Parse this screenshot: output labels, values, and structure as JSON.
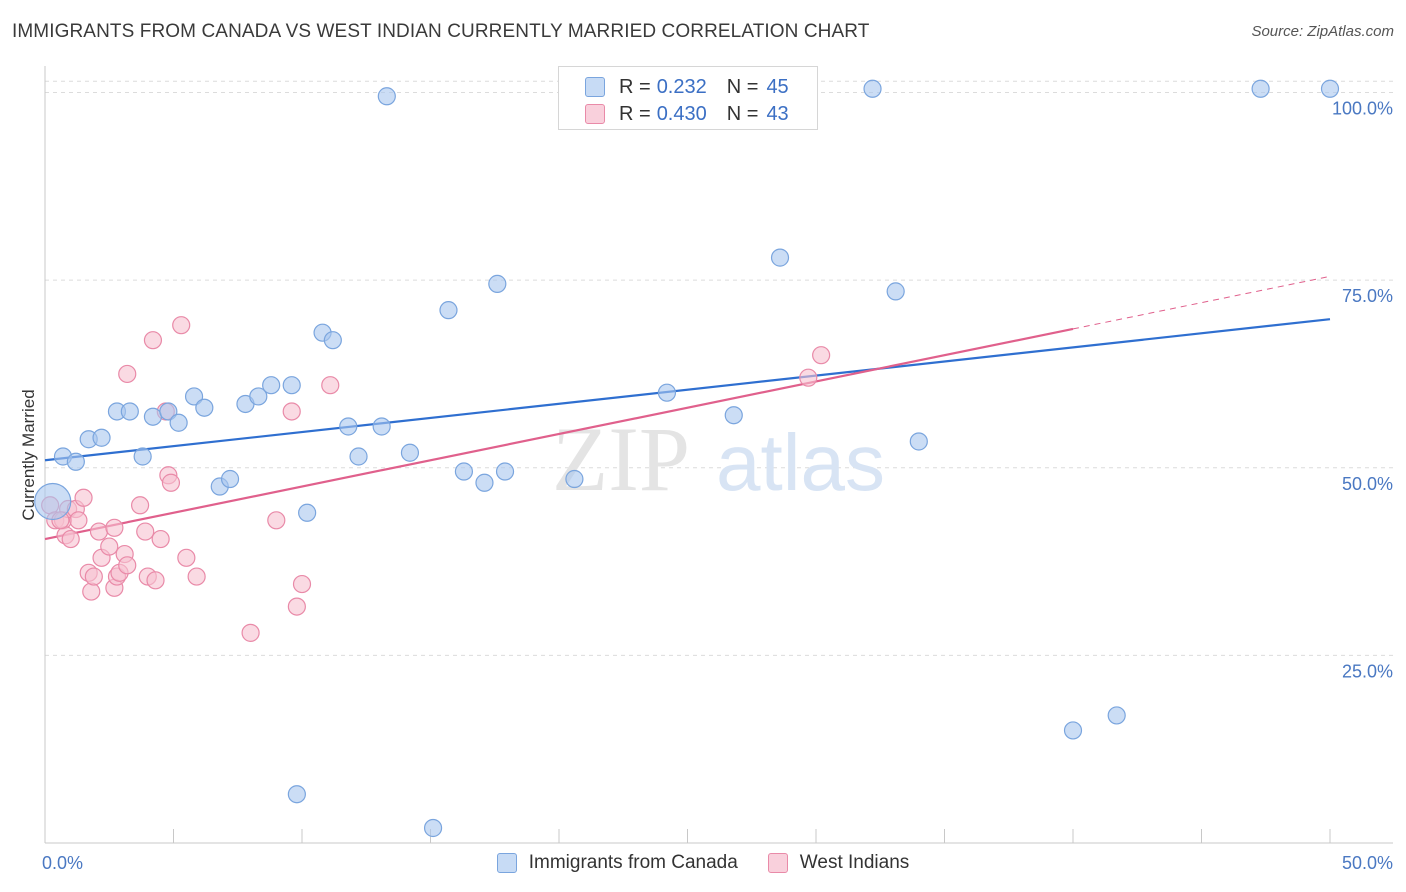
{
  "header": {
    "title": "IMMIGRANTS FROM CANADA VS WEST INDIAN CURRENTLY MARRIED CORRELATION CHART",
    "source": "Source: ZipAtlas.com"
  },
  "watermark": {
    "zip": "ZIP",
    "atlas": "atlas"
  },
  "legend": {
    "rows": [
      {
        "r_label": "R =",
        "r_value": "0.232",
        "n_label": "N =",
        "n_value": "45",
        "color": "#a9c7ef"
      },
      {
        "r_label": "R =",
        "r_value": "0.430",
        "n_label": "N =",
        "n_value": "43",
        "color": "#f4b8ca"
      }
    ]
  },
  "bottom_legend": [
    {
      "label": "Immigrants from Canada",
      "color": "#a9c7ef"
    },
    {
      "label": "West Indians",
      "color": "#f4b8ca"
    }
  ],
  "colors": {
    "blue_fill": "#a9c7ef",
    "blue_stroke": "#7aa5de",
    "blue_line": "#2f6fd0",
    "pink_fill": "#f6c1d1",
    "pink_stroke": "#e98aa8",
    "pink_line": "#e0608c",
    "tick_text": "#4a78c2",
    "grid": "#dcdcdc"
  },
  "chart_data": {
    "type": "scatter",
    "title": "IMMIGRANTS FROM CANADA VS WEST INDIAN CURRENTLY MARRIED CORRELATION CHART",
    "xlabel": "",
    "ylabel": "Currently Married",
    "xlim": [
      0,
      50
    ],
    "ylim": [
      0,
      103
    ],
    "x_tick_labels": [
      "0.0%",
      "50.0%"
    ],
    "y_tick_labels": [
      "25.0%",
      "50.0%",
      "75.0%",
      "100.0%"
    ],
    "y_ticks": [
      25,
      50,
      75,
      100
    ],
    "grid": "horizontal dashed",
    "legend_position": "top-center",
    "series": [
      {
        "name": "Immigrants from Canada",
        "points": [
          [
            0.3,
            45.5
          ],
          [
            0.7,
            51.5
          ],
          [
            1.2,
            50.8
          ],
          [
            1.7,
            53.8
          ],
          [
            2.2,
            54
          ],
          [
            2.8,
            57.5
          ],
          [
            3.3,
            57.5
          ],
          [
            3.8,
            51.5
          ],
          [
            4.2,
            56.8
          ],
          [
            4.8,
            57.5
          ],
          [
            5.2,
            56
          ],
          [
            5.8,
            59.5
          ],
          [
            6.2,
            58
          ],
          [
            6.8,
            47.5
          ],
          [
            7.2,
            48.5
          ],
          [
            7.8,
            58.5
          ],
          [
            8.3,
            59.5
          ],
          [
            8.8,
            61
          ],
          [
            9.6,
            61
          ],
          [
            9.8,
            6.5
          ],
          [
            10.2,
            44
          ],
          [
            10.8,
            68
          ],
          [
            11.2,
            67
          ],
          [
            11.8,
            55.5
          ],
          [
            12.2,
            51.5
          ],
          [
            13.1,
            55.5
          ],
          [
            13.3,
            99.5
          ],
          [
            14.2,
            52
          ],
          [
            15.1,
            2
          ],
          [
            15.7,
            71
          ],
          [
            16.3,
            49.5
          ],
          [
            17.1,
            48
          ],
          [
            17.6,
            74.5
          ],
          [
            17.9,
            49.5
          ],
          [
            20.6,
            48.5
          ],
          [
            24.2,
            60
          ],
          [
            26.8,
            57
          ],
          [
            28.6,
            78
          ],
          [
            32.2,
            100.5
          ],
          [
            33.1,
            73.5
          ],
          [
            34.0,
            53.5
          ],
          [
            40.0,
            15
          ],
          [
            41.7,
            17
          ],
          [
            47.3,
            100.5
          ],
          [
            50.0,
            100.5
          ]
        ],
        "trend": {
          "x": [
            0,
            50
          ],
          "y": [
            51,
            69.8
          ]
        }
      },
      {
        "name": "West Indians",
        "points": [
          [
            0.2,
            45
          ],
          [
            0.4,
            43
          ],
          [
            0.7,
            43
          ],
          [
            0.8,
            41
          ],
          [
            0.9,
            44.5
          ],
          [
            1.0,
            40.5
          ],
          [
            1.2,
            44.5
          ],
          [
            1.3,
            43
          ],
          [
            1.5,
            46
          ],
          [
            1.7,
            36
          ],
          [
            1.8,
            33.5
          ],
          [
            1.9,
            35.5
          ],
          [
            2.1,
            41.5
          ],
          [
            2.2,
            38
          ],
          [
            2.5,
            39.5
          ],
          [
            2.7,
            42
          ],
          [
            2.7,
            34
          ],
          [
            2.8,
            35.5
          ],
          [
            2.9,
            36
          ],
          [
            3.1,
            38.5
          ],
          [
            3.2,
            37
          ],
          [
            3.7,
            45
          ],
          [
            3.9,
            41.5
          ],
          [
            4.0,
            35.5
          ],
          [
            4.2,
            67
          ],
          [
            4.3,
            35
          ],
          [
            4.5,
            40.5
          ],
          [
            4.7,
            57.5
          ],
          [
            4.8,
            49
          ],
          [
            4.9,
            48
          ],
          [
            5.3,
            69
          ],
          [
            5.5,
            38
          ],
          [
            5.9,
            35.5
          ],
          [
            3.2,
            62.5
          ],
          [
            8.0,
            28
          ],
          [
            9.0,
            43
          ],
          [
            9.6,
            57.5
          ],
          [
            9.8,
            31.5
          ],
          [
            10.0,
            34.5
          ],
          [
            11.1,
            61
          ],
          [
            29.7,
            62
          ],
          [
            30.2,
            65
          ],
          [
            0.6,
            43
          ]
        ],
        "trend": {
          "x": [
            0,
            40
          ],
          "y": [
            40.5,
            68.5
          ]
        },
        "trend_extension": {
          "x": [
            40,
            50
          ],
          "y": [
            68.5,
            75.5
          ]
        }
      }
    ]
  }
}
